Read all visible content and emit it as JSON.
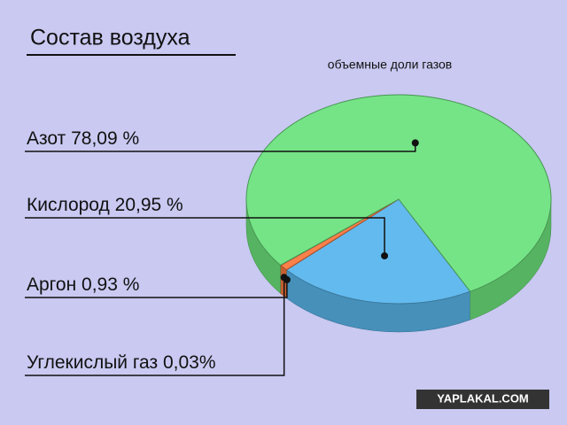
{
  "chart_data": {
    "type": "pie",
    "title": "Состав воздуха",
    "subtitle": "объемные доли газов",
    "categories": [
      "Азот",
      "Кислород",
      "Аргон",
      "Углекислый газ"
    ],
    "values": [
      78.09,
      20.95,
      0.93,
      0.03
    ],
    "value_labels": [
      "78,09 %",
      "20,95 %",
      "0,93 %",
      "0,03%"
    ],
    "colors": [
      "#6ee67e",
      "#5ab8ee",
      "#ff7a3c",
      "#e0504a"
    ],
    "watermark": "YAPLAKAL.COM"
  }
}
